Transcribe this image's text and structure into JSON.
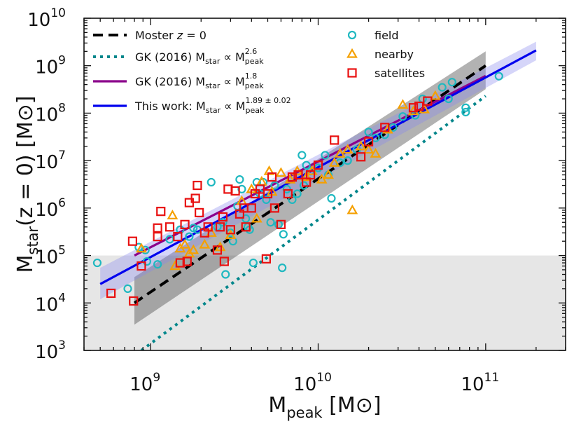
{
  "chart_data": {
    "type": "scatter",
    "xscale": "log",
    "yscale": "log",
    "xlim": [
      400000000.0,
      300000000000.0
    ],
    "ylim": [
      1000.0,
      10000000000.0
    ],
    "xticks": [
      {
        "base": "10",
        "exp": "9",
        "value": 1000000000.0
      },
      {
        "base": "10",
        "exp": "10",
        "value": 10000000000.0
      },
      {
        "base": "10",
        "exp": "11",
        "value": 100000000000.0
      }
    ],
    "yticks": [
      {
        "base": "10",
        "exp": "3",
        "value": 1000.0
      },
      {
        "base": "10",
        "exp": "4",
        "value": 10000.0
      },
      {
        "base": "10",
        "exp": "5",
        "value": 100000.0
      },
      {
        "base": "10",
        "exp": "6",
        "value": 1000000.0
      },
      {
        "base": "10",
        "exp": "7",
        "value": 10000000.0
      },
      {
        "base": "10",
        "exp": "8",
        "value": 100000000.0
      },
      {
        "base": "10",
        "exp": "9",
        "value": 1000000000.0
      },
      {
        "base": "10",
        "exp": "10",
        "value": 10000000000.0
      }
    ],
    "xlabel": {
      "main": "M",
      "sub": "peak",
      "unit": " [M⊙]"
    },
    "ylabel": {
      "main": "M",
      "sub": "star",
      "rest": "(z = 0) [M⊙]"
    },
    "shaded_region": {
      "ymax": 100000.0,
      "color": "#e6e6e6"
    },
    "lines": [
      {
        "name": "Moster z = 0",
        "color": "#000000",
        "style": "dashed",
        "x": [
          800000000.0,
          100000000000.0
        ],
        "y": [
          10000.0,
          1000000000.0
        ],
        "band": {
          "color": "#555555",
          "opacity": 0.45,
          "lower": [
            3500.0,
            320000000.0
          ],
          "upper": [
            35000.0,
            2000000000.0
          ]
        }
      },
      {
        "name": "GK (2016) Mstar ∝ Mpeak^2.6",
        "color": "#00868b",
        "style": "dotted",
        "x": [
          880000000.0,
          100000000000.0
        ],
        "y": [
          1000.0,
          230000000.0
        ]
      },
      {
        "name": "GK (2016) Mstar ∝ Mpeak^1.8",
        "color": "#8b008b",
        "style": "solid",
        "x": [
          800000000.0,
          100000000000.0
        ],
        "y": [
          100000.0,
          610000000.0
        ]
      },
      {
        "name": "This work: Mstar ∝ Mpeak^1.89±0.02",
        "color": "#0000ee",
        "style": "solid",
        "x": [
          500000000.0,
          200000000000.0
        ],
        "y": [
          25000.0,
          2100000000.0
        ],
        "band": {
          "color": "#8888ee",
          "opacity": 0.35,
          "lower": [
            12000.0,
            1300000000.0
          ],
          "upper": [
            55000.0,
            3200000000.0
          ]
        }
      }
    ],
    "series": [
      {
        "name": "field",
        "marker": "circle",
        "color": "#1fb8c0",
        "points": [
          [
            480000000.0,
            70000.0
          ],
          [
            730000000.0,
            20000.0
          ],
          [
            850000000.0,
            150000.0
          ],
          [
            930000000.0,
            130000.0
          ],
          [
            950000000.0,
            75000.0
          ],
          [
            1100000000.0,
            65000.0
          ],
          [
            1300000000.0,
            220000.0
          ],
          [
            1500000000.0,
            350000.0
          ],
          [
            1700000000.0,
            250000.0
          ],
          [
            1800000000.0,
            380000.0
          ],
          [
            1900000000.0,
            350000.0
          ],
          [
            2300000000.0,
            3500000.0
          ],
          [
            2500000000.0,
            400000.0
          ],
          [
            2700000000.0,
            500000.0
          ],
          [
            2800000000.0,
            40000.0
          ],
          [
            3000000000.0,
            300000.0
          ],
          [
            3100000000.0,
            200000.0
          ],
          [
            3300000000.0,
            1100000.0
          ],
          [
            3400000000.0,
            4000000.0
          ],
          [
            3500000000.0,
            2500000.0
          ],
          [
            3700000000.0,
            600000.0
          ],
          [
            3800000000.0,
            400000.0
          ],
          [
            3900000000.0,
            350000.0
          ],
          [
            4100000000.0,
            70000.0
          ],
          [
            4300000000.0,
            3500000.0
          ],
          [
            4500000000.0,
            2000000.0
          ],
          [
            4700000000.0,
            3500000.0
          ],
          [
            4900000000.0,
            1500000.0
          ],
          [
            5200000000.0,
            500000.0
          ],
          [
            5500000000.0,
            3000000.0
          ],
          [
            5800000000.0,
            450000.0
          ],
          [
            6100000000.0,
            55000.0
          ],
          [
            6200000000.0,
            280000.0
          ],
          [
            6500000000.0,
            2500000.0
          ],
          [
            7000000000.0,
            1500000.0
          ],
          [
            7500000000.0,
            2000000.0
          ],
          [
            8000000000.0,
            13000000.0
          ],
          [
            8200000000.0,
            3000000.0
          ],
          [
            8500000000.0,
            8000000.0
          ],
          [
            9000000000.0,
            6000000.0
          ],
          [
            10000000000.0,
            7000000.0
          ],
          [
            11000000000.0,
            13000000.0
          ],
          [
            11500000000.0,
            5000000.0
          ],
          [
            12000000000.0,
            1600000.0
          ],
          [
            13500000000.0,
            9000000.0
          ],
          [
            15000000000.0,
            10000000.0
          ],
          [
            17000000000.0,
            17000000.0
          ],
          [
            20000000000.0,
            40000000.0
          ],
          [
            22000000000.0,
            30000000.0
          ],
          [
            25000000000.0,
            35000000.0
          ],
          [
            28000000000.0,
            50000000.0
          ],
          [
            32000000000.0,
            85000000.0
          ],
          [
            38000000000.0,
            90000000.0
          ],
          [
            42000000000.0,
            200000000.0
          ],
          [
            55000000000.0,
            350000000.0
          ],
          [
            60000000000.0,
            200000000.0
          ],
          [
            63000000000.0,
            450000000.0
          ],
          [
            76000000000.0,
            130000000.0
          ],
          [
            76000000000.0,
            105000000.0
          ],
          [
            120000000000.0,
            600000000.0
          ]
        ]
      },
      {
        "name": "nearby",
        "marker": "triangle",
        "color": "#f5a000",
        "points": [
          [
            880000000.0,
            140000.0
          ],
          [
            1350000000.0,
            700000.0
          ],
          [
            1400000000.0,
            60000.0
          ],
          [
            1500000000.0,
            140000.0
          ],
          [
            1600000000.0,
            170000.0
          ],
          [
            1700000000.0,
            110000.0
          ],
          [
            1800000000.0,
            130000.0
          ],
          [
            2100000000.0,
            170000.0
          ],
          [
            2300000000.0,
            300000.0
          ],
          [
            2600000000.0,
            150000.0
          ],
          [
            3000000000.0,
            270000.0
          ],
          [
            3500000000.0,
            1400000.0
          ],
          [
            4000000000.0,
            2500000.0
          ],
          [
            4300000000.0,
            600000.0
          ],
          [
            4600000000.0,
            3600000.0
          ],
          [
            5100000000.0,
            6000000.0
          ],
          [
            5300000000.0,
            2200000.0
          ],
          [
            6000000000.0,
            5500000.0
          ],
          [
            6800000000.0,
            4000000.0
          ],
          [
            7500000000.0,
            6000000.0
          ],
          [
            8500000000.0,
            4500000.0
          ],
          [
            9200000000.0,
            6000000.0
          ],
          [
            10500000000.0,
            4000000.0
          ],
          [
            11500000000.0,
            5000000.0
          ],
          [
            12500000000.0,
            9000000.0
          ],
          [
            13500000000.0,
            14000000.0
          ],
          [
            15000000000.0,
            17000000.0
          ],
          [
            16000000000.0,
            900000.0
          ],
          [
            18000000000.0,
            20000000.0
          ],
          [
            20000000000.0,
            17000000.0
          ],
          [
            22000000000.0,
            14000000.0
          ],
          [
            26000000000.0,
            45000000.0
          ],
          [
            32000000000.0,
            150000000.0
          ],
          [
            37000000000.0,
            110000000.0
          ],
          [
            43000000000.0,
            120000000.0
          ],
          [
            50000000000.0,
            230000000.0
          ]
        ]
      },
      {
        "name": "satellites",
        "marker": "square",
        "color": "#e81010",
        "points": [
          [
            580000000.0,
            16000.0
          ],
          [
            780000000.0,
            200000.0
          ],
          [
            790000000.0,
            11000.0
          ],
          [
            880000000.0,
            60000.0
          ],
          [
            1100000000.0,
            250000.0
          ],
          [
            1100000000.0,
            380000.0
          ],
          [
            1150000000.0,
            850000.0
          ],
          [
            1300000000.0,
            400000.0
          ],
          [
            1450000000.0,
            250000.0
          ],
          [
            1500000000.0,
            70000.0
          ],
          [
            1600000000.0,
            450000.0
          ],
          [
            1650000000.0,
            75000.0
          ],
          [
            1700000000.0,
            1300000.0
          ],
          [
            1850000000.0,
            1600000.0
          ],
          [
            1900000000.0,
            3000000.0
          ],
          [
            1950000000.0,
            800000.0
          ],
          [
            2100000000.0,
            300000.0
          ],
          [
            2200000000.0,
            400000.0
          ],
          [
            2500000000.0,
            130000.0
          ],
          [
            2600000000.0,
            400000.0
          ],
          [
            2700000000.0,
            650000.0
          ],
          [
            2750000000.0,
            75000.0
          ],
          [
            2900000000.0,
            2500000.0
          ],
          [
            3000000000.0,
            350000.0
          ],
          [
            3200000000.0,
            2300000.0
          ],
          [
            3400000000.0,
            750000.0
          ],
          [
            3600000000.0,
            1000000.0
          ],
          [
            3700000000.0,
            400000.0
          ],
          [
            4000000000.0,
            1000000.0
          ],
          [
            4200000000.0,
            2000000.0
          ],
          [
            4500000000.0,
            2500000.0
          ],
          [
            4900000000.0,
            85000.0
          ],
          [
            5000000000.0,
            2000000.0
          ],
          [
            5300000000.0,
            4500000.0
          ],
          [
            5500000000.0,
            1000000.0
          ],
          [
            6000000000.0,
            450000.0
          ],
          [
            6600000000.0,
            2000000.0
          ],
          [
            7000000000.0,
            4500000.0
          ],
          [
            7600000000.0,
            5000000.0
          ],
          [
            8500000000.0,
            3500000.0
          ],
          [
            9000000000.0,
            5000000.0
          ],
          [
            10000000000.0,
            8000000.0
          ],
          [
            12500000000.0,
            27000000.0
          ],
          [
            18000000000.0,
            12000000.0
          ],
          [
            20000000000.0,
            25000000.0
          ],
          [
            25000000000.0,
            50000000.0
          ],
          [
            37000000000.0,
            130000000.0
          ],
          [
            40000000000.0,
            140000000.0
          ],
          [
            45000000000.0,
            180000000.0
          ]
        ]
      }
    ],
    "legend": {
      "left": [
        {
          "key": "moster",
          "swatch": "dashed",
          "color": "#000000",
          "pre": "Moster ",
          "it": "z",
          "post": " = 0",
          "sub": "",
          "mid": "",
          "sub2": "",
          "sup": ""
        },
        {
          "key": "gk26",
          "swatch": "dotted",
          "color": "#00868b",
          "pre": "GK (2016) M",
          "it": "",
          "post": "",
          "sub": "star",
          "mid": " ∝ M",
          "sub2": "peak",
          "sup": "2.6"
        },
        {
          "key": "gk18",
          "swatch": "solid",
          "color": "#8b008b",
          "pre": "GK (2016) M",
          "it": "",
          "post": "",
          "sub": "star",
          "mid": " ∝ M",
          "sub2": "peak",
          "sup": "1.8"
        },
        {
          "key": "thiswork",
          "swatch": "solid",
          "color": "#0000ee",
          "pre": "This work: M",
          "it": "",
          "post": "",
          "sub": "star",
          "mid": " ∝ M",
          "sub2": "peak",
          "sup": "1.89 ± 0.02"
        }
      ],
      "right": [
        {
          "key": "field",
          "marker": "circle",
          "color": "#1fb8c0",
          "label": "field"
        },
        {
          "key": "nearby",
          "marker": "triangle",
          "color": "#f5a000",
          "label": "nearby"
        },
        {
          "key": "satellites",
          "marker": "square",
          "color": "#e81010",
          "label": "satellites"
        }
      ]
    }
  }
}
